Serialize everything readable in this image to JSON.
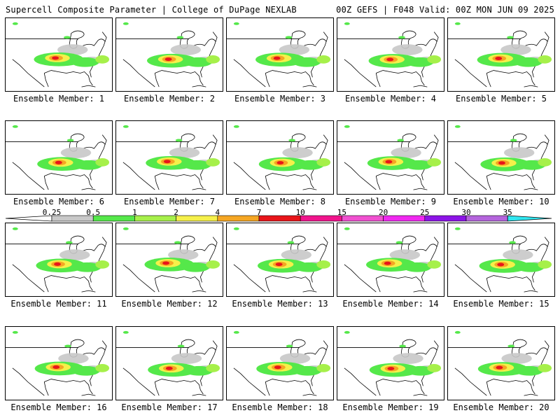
{
  "header": {
    "title": "Supercell Composite Parameter | College of DuPage NEXLAB",
    "valid": "00Z GEFS | F048 Valid: 00Z MON JUN 09 2025"
  },
  "panels": [
    {
      "label": "Ensemble Member: 1"
    },
    {
      "label": "Ensemble Member: 2"
    },
    {
      "label": "Ensemble Member: 3"
    },
    {
      "label": "Ensemble Member: 4"
    },
    {
      "label": "Ensemble Member: 5"
    },
    {
      "label": "Ensemble Member: 6"
    },
    {
      "label": "Ensemble Member: 7"
    },
    {
      "label": "Ensemble Member: 8"
    },
    {
      "label": "Ensemble Member: 9"
    },
    {
      "label": "Ensemble Member: 10"
    },
    {
      "label": "Ensemble Member: 11"
    },
    {
      "label": "Ensemble Member: 12"
    },
    {
      "label": "Ensemble Member: 13"
    },
    {
      "label": "Ensemble Member: 14"
    },
    {
      "label": "Ensemble Member: 15"
    },
    {
      "label": "Ensemble Member: 16"
    },
    {
      "label": "Ensemble Member: 17"
    },
    {
      "label": "Ensemble Member: 18"
    },
    {
      "label": "Ensemble Member: 19"
    },
    {
      "label": "Ensemble Member: 20"
    }
  ],
  "colorbar": {
    "ticks": [
      "0.25",
      "0.5",
      "1",
      "2",
      "4",
      "7",
      "10",
      "15",
      "20",
      "25",
      "30",
      "35"
    ],
    "colors": [
      "#c8c8c8",
      "#55e84a",
      "#a6f04a",
      "#f5f04a",
      "#f5a623",
      "#e8151a",
      "#f0148c",
      "#f050d0",
      "#f028f0",
      "#8c14e6",
      "#b464dc",
      "#30e6f0"
    ]
  }
}
